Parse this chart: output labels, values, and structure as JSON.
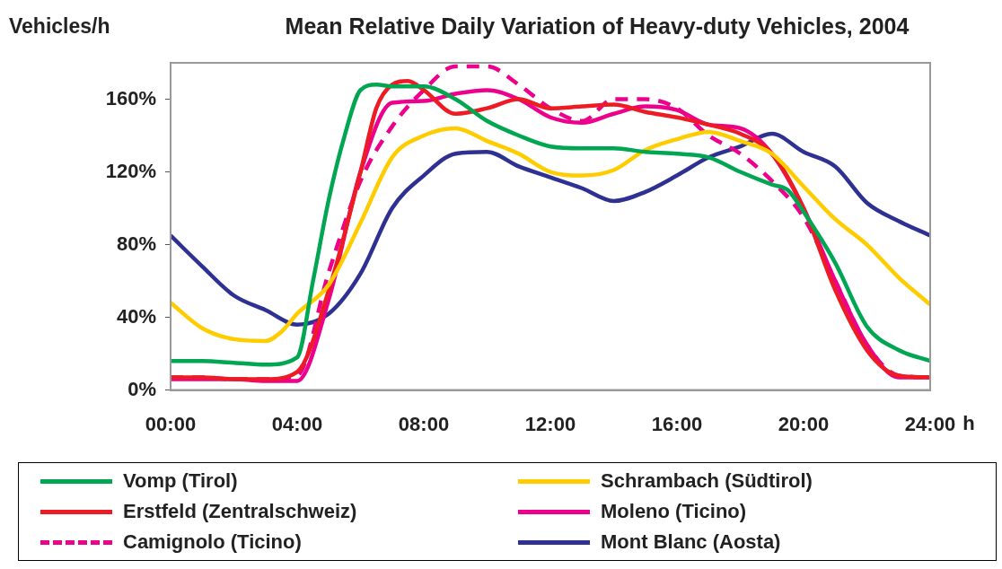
{
  "chart_data": {
    "type": "line",
    "title": "Mean Relative Daily Variation of Heavy-duty Vehicles, 2004",
    "ylabel": "Vehicles/h",
    "xlabel": "h",
    "xlim": [
      0,
      24
    ],
    "xticks": [
      {
        "value": 0,
        "label": "00:00"
      },
      {
        "value": 4,
        "label": "04:00"
      },
      {
        "value": 8,
        "label": "08:00"
      },
      {
        "value": 12,
        "label": "12:00"
      },
      {
        "value": 16,
        "label": "16:00"
      },
      {
        "value": 20,
        "label": "20:00"
      },
      {
        "value": 24,
        "label": "24:00"
      }
    ],
    "ylim": [
      0,
      180
    ],
    "yticks": [
      {
        "value": 0,
        "label": "0%"
      },
      {
        "value": 40,
        "label": "40%"
      },
      {
        "value": 80,
        "label": "80%"
      },
      {
        "value": 120,
        "label": "120%"
      },
      {
        "value": 160,
        "label": "160%"
      }
    ],
    "legend": "bottom",
    "marker": "none",
    "line_style": "solid",
    "series": [
      {
        "name": "Vomp (Tirol)",
        "color": "#00a651",
        "x": [
          0,
          1,
          2,
          3,
          4,
          4.5,
          5,
          5.5,
          6,
          6.5,
          7,
          8,
          9,
          10,
          11,
          12,
          13,
          14,
          15,
          16,
          17,
          18,
          19,
          19.5,
          20,
          21,
          22,
          23,
          24
        ],
        "values": [
          16,
          16,
          15,
          14,
          18,
          60,
          105,
          140,
          165,
          168,
          167,
          167,
          160,
          148,
          140,
          134,
          133,
          133,
          131,
          130,
          128,
          120,
          113,
          110,
          98,
          70,
          35,
          22,
          16
        ]
      },
      {
        "name": "Schrambach (Südtirol)",
        "color": "#ffcc00",
        "x": [
          0,
          1,
          2,
          3,
          3.5,
          4,
          5,
          6,
          7,
          8,
          9,
          10,
          11,
          12,
          13,
          14,
          15,
          16,
          17,
          18,
          19,
          20,
          21,
          22,
          23,
          24
        ],
        "values": [
          48,
          34,
          28,
          27,
          32,
          42,
          58,
          92,
          128,
          140,
          144,
          137,
          130,
          120,
          118,
          121,
          132,
          138,
          142,
          137,
          130,
          112,
          94,
          80,
          62,
          47
        ]
      },
      {
        "name": "Erstfeld (Zentralschweiz)",
        "color": "#ed1c24",
        "x": [
          0,
          1,
          2,
          3,
          4,
          5,
          6,
          6.5,
          7,
          7.5,
          8,
          9,
          10,
          11,
          12,
          13,
          14,
          15,
          16,
          17,
          18,
          19,
          20,
          21,
          22,
          23,
          24
        ],
        "values": [
          7,
          7,
          6,
          6,
          10,
          55,
          120,
          155,
          168,
          170,
          165,
          152,
          155,
          160,
          155,
          156,
          157,
          153,
          150,
          146,
          141,
          130,
          100,
          55,
          22,
          8,
          7
        ]
      },
      {
        "name": "Moleno (Ticino)",
        "color": "#ec008c",
        "x": [
          0,
          1,
          2,
          3,
          4,
          5,
          6,
          7,
          8,
          9,
          10,
          11,
          12,
          13,
          14,
          15,
          16,
          17,
          18,
          19,
          20,
          21,
          22,
          23,
          24
        ],
        "values": [
          6,
          6,
          6,
          5,
          5,
          50,
          120,
          158,
          159,
          163,
          165,
          160,
          150,
          147,
          152,
          156,
          154,
          146,
          144,
          130,
          100,
          60,
          25,
          7,
          7
        ]
      },
      {
        "name": "Camignolo (Ticino)",
        "color": "#ec008c",
        "line_style": "dashed",
        "x": [
          0,
          1,
          2,
          3,
          4,
          5,
          6,
          7,
          8,
          9,
          10,
          11,
          12,
          13,
          14,
          15,
          16,
          17,
          18,
          19,
          20,
          21,
          22,
          23,
          24
        ],
        "values": [
          7,
          7,
          6,
          6,
          8,
          65,
          115,
          145,
          165,
          178,
          178,
          168,
          155,
          148,
          160,
          160,
          155,
          140,
          130,
          115,
          95,
          60,
          25,
          8,
          7
        ]
      },
      {
        "name": "Mont Blanc (Aosta)",
        "color": "#2e3192",
        "x": [
          0,
          1,
          2,
          3,
          4,
          5,
          6,
          7,
          8,
          9,
          10,
          11,
          12,
          13,
          14,
          15,
          16,
          17,
          18,
          19,
          20,
          21,
          22,
          23,
          24
        ],
        "values": [
          85,
          68,
          52,
          44,
          36,
          42,
          64,
          100,
          118,
          130,
          131,
          123,
          117,
          111,
          104,
          109,
          118,
          128,
          134,
          141,
          131,
          123,
          103,
          93,
          85
        ]
      }
    ]
  }
}
